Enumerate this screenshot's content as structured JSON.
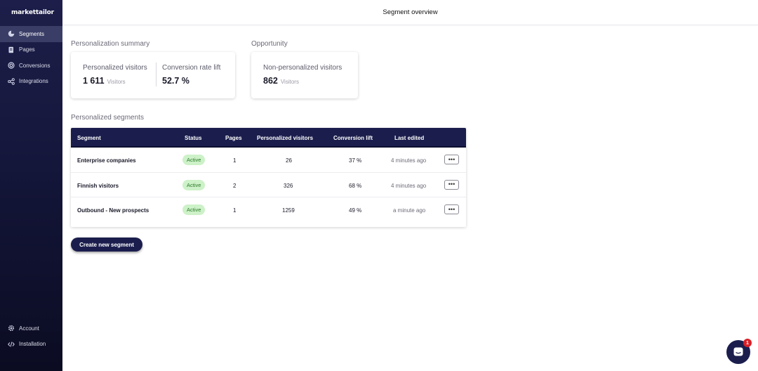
{
  "app": {
    "logo_text": "markettailor"
  },
  "sidebar": {
    "items": [
      {
        "label": "Segments",
        "icon": "pie-chart-icon",
        "active": true
      },
      {
        "label": "Pages",
        "icon": "pages-icon",
        "active": false
      },
      {
        "label": "Conversions",
        "icon": "target-icon",
        "active": false
      },
      {
        "label": "Integrations",
        "icon": "share-icon",
        "active": false
      }
    ],
    "bottom_items": [
      {
        "label": "Account",
        "icon": "gear-icon"
      },
      {
        "label": "Installation",
        "icon": "code-icon"
      }
    ]
  },
  "header": {
    "title": "Segment overview"
  },
  "summary": {
    "title": "Personalization summary",
    "personalized_visitors": {
      "label": "Personalized visitors",
      "value": "1 611",
      "unit": "Visitors"
    },
    "conversion_rate_lift": {
      "label": "Conversion rate lift",
      "value": "52.7 %"
    }
  },
  "opportunity": {
    "title": "Opportunity",
    "non_personalized_visitors": {
      "label": "Non-personalized visitors",
      "value": "862",
      "unit": "Visitors"
    }
  },
  "segments": {
    "title": "Personalized segments",
    "columns": [
      "Segment",
      "Status",
      "Pages",
      "Personalized visitors",
      "Conversion lift",
      "Last edited"
    ],
    "rows": [
      {
        "segment": "Enterprise companies",
        "status": "Active",
        "pages": "1",
        "visitors": "26",
        "lift": "37 %",
        "last_edited": "4 minutes ago"
      },
      {
        "segment": "Finnish visitors",
        "status": "Active",
        "pages": "2",
        "visitors": "326",
        "lift": "68 %",
        "last_edited": "4 minutes ago"
      },
      {
        "segment": "Outbound - New prospects",
        "status": "Active",
        "pages": "1",
        "visitors": "1259",
        "lift": "49 %",
        "last_edited": "a minute ago"
      }
    ],
    "more_label": "•••",
    "create_button": "Create new segment"
  },
  "chat": {
    "badge_count": "1",
    "icon": "chat-icon"
  },
  "colors": {
    "sidebar": "#1d1f4a",
    "table_header": "#1b1e4d",
    "active_badge_bg": "#cdf1c8",
    "active_badge_text": "#2d7a2a",
    "notification": "#d91f26"
  }
}
